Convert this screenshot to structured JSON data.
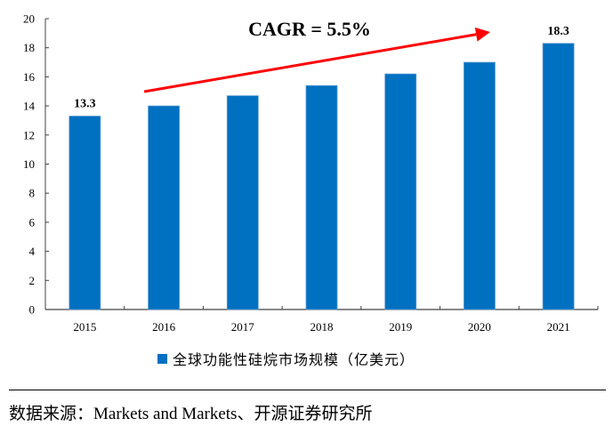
{
  "chart_data": {
    "type": "bar",
    "title": "",
    "categories": [
      "2015",
      "2016",
      "2017",
      "2018",
      "2019",
      "2020",
      "2021"
    ],
    "series": [
      {
        "name": "全球功能性硅烷市场规模（亿美元）",
        "values": [
          13.3,
          14.0,
          14.7,
          15.4,
          16.2,
          17.0,
          18.3
        ],
        "color": "#0070C0"
      }
    ],
    "data_labels": [
      {
        "category": "2015",
        "text": "13.3"
      },
      {
        "category": "2021",
        "text": "18.3"
      }
    ],
    "annotation": {
      "text": "CAGR = 5.5%",
      "arrow_from": "2016",
      "arrow_to": "2020",
      "color": "#FF0000"
    },
    "xlabel": "",
    "ylabel": "",
    "ylim": [
      0,
      20
    ],
    "yticks": [
      0,
      2,
      4,
      6,
      8,
      10,
      12,
      14,
      16,
      18,
      20
    ],
    "grid": false,
    "legend": "bottom-center"
  },
  "legend_label": "全球功能性硅烷市场规模（亿美元）",
  "source_note": "数据来源：Markets and Markets、开源证券研究所"
}
